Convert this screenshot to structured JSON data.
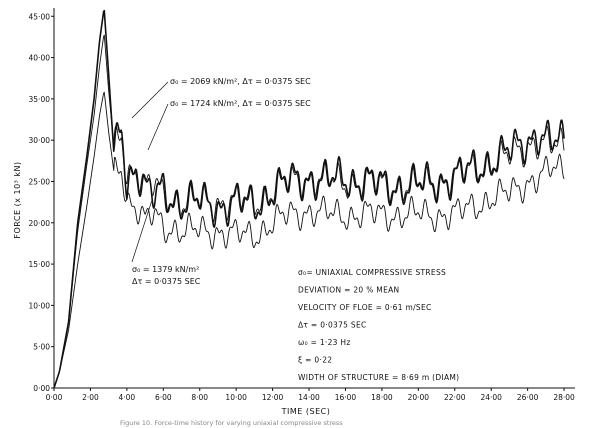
{
  "chart_data": {
    "type": "line",
    "xlabel": "TIME (SEC)",
    "ylabel": "FORCE (x 10³ kN)",
    "xlim": [
      0,
      28.6
    ],
    "ylim": [
      0,
      46
    ],
    "x_ticks": [
      "0·00",
      "2·00",
      "4·00",
      "6·00",
      "8·00",
      "10·00",
      "12·00",
      "14·00",
      "16·00",
      "18·00",
      "20·00",
      "22·00",
      "24·00",
      "26·00",
      "28·00"
    ],
    "y_ticks": [
      "0·00",
      "5·00",
      "10·00",
      "15·00",
      "20·00",
      "25·00",
      "30·00",
      "35·00",
      "40·00",
      "45·00"
    ],
    "grid": false,
    "series": [
      {
        "name": "σ₀ = 2069 kN/m², Δτ = 0·0375 SEC",
        "label_lines": [
          "σ₀ = 2069 kN/m², Δτ = 0·0375 SEC"
        ],
        "stroke_width": 1.6,
        "base": [
          [
            0,
            0
          ],
          [
            0.3,
            2
          ],
          [
            0.8,
            8
          ],
          [
            1.3,
            20
          ],
          [
            1.8,
            28
          ],
          [
            2.2,
            35
          ],
          [
            2.5,
            42
          ],
          [
            2.75,
            46
          ],
          [
            3.0,
            38
          ],
          [
            3.3,
            28
          ],
          [
            3.7,
            32
          ],
          [
            4.0,
            25
          ],
          [
            4.5,
            27
          ],
          [
            5.0,
            24
          ],
          [
            5.5,
            23
          ],
          [
            6.0,
            24
          ],
          [
            6.5,
            23
          ],
          [
            7.0,
            22.5
          ],
          [
            8.0,
            22.5
          ],
          [
            9.0,
            22
          ],
          [
            10.0,
            22.5
          ],
          [
            11.0,
            22
          ],
          [
            12.0,
            24
          ],
          [
            13.0,
            25
          ],
          [
            14.0,
            25.5
          ],
          [
            15.0,
            25
          ],
          [
            16.0,
            25.5
          ],
          [
            17.0,
            25
          ],
          [
            18.0,
            24.5
          ],
          [
            19.0,
            24.5
          ],
          [
            20.0,
            24.5
          ],
          [
            21.0,
            25
          ],
          [
            22.0,
            25.5
          ],
          [
            23.0,
            26.5
          ],
          [
            24.0,
            27.5
          ],
          [
            25.0,
            28.5
          ],
          [
            26.0,
            30
          ],
          [
            26.5,
            31
          ],
          [
            27.0,
            30
          ],
          [
            27.5,
            29.5
          ],
          [
            28.0,
            30
          ]
        ],
        "amp": 2.6,
        "phase": 0.0
      },
      {
        "name": "σ₀ = 1724 kN/m², Δτ = 0·0375 SEC",
        "label_lines": [
          "σ₀ = 1724 kN/m², Δτ = 0·0375 SEC"
        ],
        "stroke_width": 0.9,
        "base": [
          [
            0,
            0
          ],
          [
            0.3,
            2
          ],
          [
            0.8,
            8
          ],
          [
            1.3,
            19
          ],
          [
            1.8,
            27
          ],
          [
            2.2,
            33
          ],
          [
            2.5,
            39
          ],
          [
            2.75,
            43
          ],
          [
            3.0,
            36
          ],
          [
            3.3,
            29
          ],
          [
            3.7,
            31
          ],
          [
            4.0,
            26
          ],
          [
            4.5,
            26.5
          ],
          [
            5.0,
            24
          ],
          [
            5.5,
            24.5
          ],
          [
            6.0,
            23.5
          ],
          [
            6.5,
            23
          ],
          [
            7.0,
            22.5
          ],
          [
            8.0,
            22.5
          ],
          [
            9.0,
            22.5
          ],
          [
            10.0,
            22.5
          ],
          [
            11.0,
            22.5
          ],
          [
            12.0,
            24
          ],
          [
            13.0,
            25
          ],
          [
            14.0,
            25.5
          ],
          [
            15.0,
            25
          ],
          [
            16.0,
            25
          ],
          [
            17.0,
            25
          ],
          [
            18.0,
            24.5
          ],
          [
            19.0,
            24.5
          ],
          [
            20.0,
            24.5
          ],
          [
            21.0,
            25
          ],
          [
            22.0,
            25.5
          ],
          [
            23.0,
            26.5
          ],
          [
            24.0,
            27.5
          ],
          [
            25.0,
            28
          ],
          [
            26.0,
            29.5
          ],
          [
            26.5,
            30
          ],
          [
            27.0,
            29.5
          ],
          [
            27.5,
            29
          ],
          [
            28.0,
            29.5
          ]
        ],
        "amp": 2.3,
        "phase": 0.35
      },
      {
        "name": "σ₀ = 1379 kN/m², Δτ = 0·0375 SEC",
        "label_lines": [
          "σ₀ = 1379 kN/m²",
          "Δτ = 0·0375 SEC"
        ],
        "stroke_width": 0.9,
        "base": [
          [
            0,
            0
          ],
          [
            0.3,
            2
          ],
          [
            0.8,
            7
          ],
          [
            1.3,
            15
          ],
          [
            1.8,
            22
          ],
          [
            2.2,
            28
          ],
          [
            2.5,
            33
          ],
          [
            2.75,
            36
          ],
          [
            3.0,
            31
          ],
          [
            3.3,
            26
          ],
          [
            3.7,
            27
          ],
          [
            4.0,
            23
          ],
          [
            4.5,
            22
          ],
          [
            5.0,
            20
          ],
          [
            5.5,
            21
          ],
          [
            6.0,
            19.5
          ],
          [
            6.5,
            19.5
          ],
          [
            7.0,
            19
          ],
          [
            8.0,
            19
          ],
          [
            9.0,
            19
          ],
          [
            10.0,
            18.5
          ],
          [
            11.0,
            18.5
          ],
          [
            12.0,
            20
          ],
          [
            13.0,
            21
          ],
          [
            14.0,
            21.5
          ],
          [
            15.0,
            21
          ],
          [
            16.0,
            21
          ],
          [
            17.0,
            21
          ],
          [
            18.0,
            21
          ],
          [
            19.0,
            21
          ],
          [
            20.0,
            21
          ],
          [
            21.0,
            21
          ],
          [
            22.0,
            21
          ],
          [
            23.0,
            22
          ],
          [
            24.0,
            23
          ],
          [
            25.0,
            23.5
          ],
          [
            26.0,
            25
          ],
          [
            26.5,
            25.5
          ],
          [
            27.0,
            26
          ],
          [
            27.5,
            26.5
          ],
          [
            28.0,
            26.5
          ]
        ],
        "amp": 2.0,
        "phase": 0.8
      }
    ],
    "notes": [
      "σ₀= UNIAXIAL COMPRESSIVE STRESS",
      "DEVIATION = 20 % MEAN",
      "VELOCITY OF FLOE = 0·61 m/SEC",
      "Δτ = 0·0375 SEC",
      "ω₀ = 1·23 Hz",
      "ξ = 0·22",
      "WIDTH OF STRUCTURE = 8·69 m  (DIAM)"
    ],
    "caption": "Figure 10. Force-time history for varying uniaxial compressive stress"
  }
}
